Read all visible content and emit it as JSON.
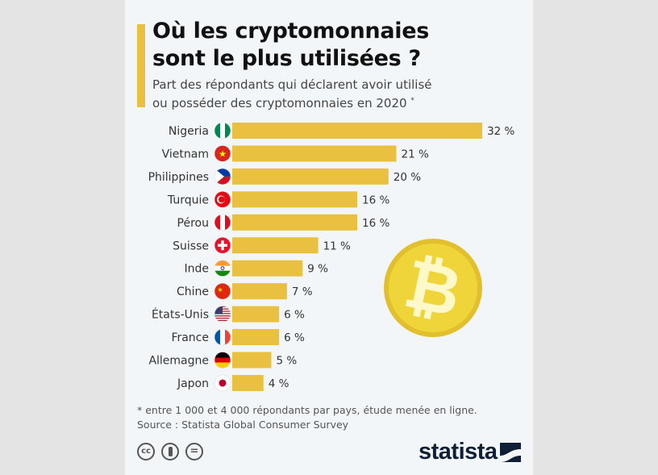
{
  "title_line1": "Où les cryptomonnaies",
  "title_line2": "sont le plus utilisées ?",
  "subtitle_line1": "Part des répondants qui déclarent avoir utilisé",
  "subtitle_line2": "ou posséder des cryptomonnaies en 2020",
  "subtitle_mark": "*",
  "footnote": "* entre 1 000 et 4 000 répondants par pays, étude menée en ligne.",
  "source": "Source : Statista Global Consumer Survey",
  "license_icons": [
    "cc-icon",
    "by-icon",
    "nd-icon"
  ],
  "license_labels": {
    "cc": "cc",
    "nd": "="
  },
  "brand": "statista",
  "colors": {
    "bar": "#e9c03f",
    "coin": "#f0d53a",
    "accent": "#e9c03f"
  },
  "chart_data": {
    "type": "bar",
    "orientation": "horizontal",
    "categories": [
      "Nigeria",
      "Vietnam",
      "Philippines",
      "Turquie",
      "Pérou",
      "Suisse",
      "Inde",
      "Chine",
      "États-Unis",
      "France",
      "Allemagne",
      "Japon"
    ],
    "values": [
      32,
      21,
      20,
      16,
      16,
      11,
      9,
      7,
      6,
      6,
      5,
      4
    ],
    "value_suffix": " %",
    "flags": [
      "ng",
      "vn",
      "ph",
      "tr",
      "pe",
      "ch",
      "in",
      "cn",
      "us",
      "fr",
      "de",
      "jp"
    ],
    "grid": false
  }
}
